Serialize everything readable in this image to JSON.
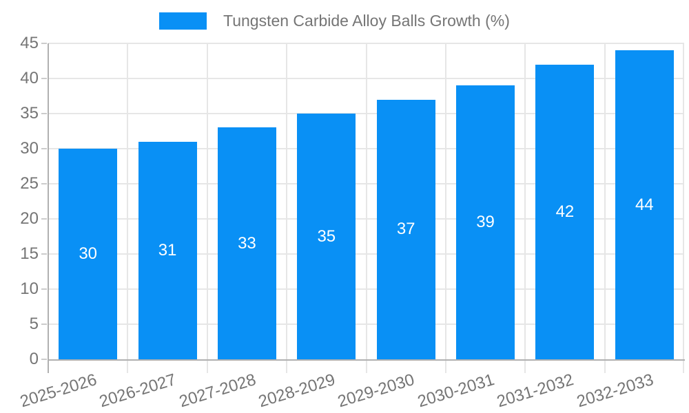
{
  "legend": {
    "label": "Tungsten Carbide Alloy Balls Growth (%)"
  },
  "chart_data": {
    "type": "bar",
    "title": "Tungsten Carbide Alloy Balls Growth (%)",
    "categories": [
      "2025-2026",
      "2026-2027",
      "2027-2028",
      "2028-2029",
      "2029-2030",
      "2030-2031",
      "2031-2032",
      "2032-2033"
    ],
    "values": [
      30,
      31,
      33,
      35,
      37,
      39,
      42,
      44
    ],
    "series": [
      {
        "name": "Tungsten Carbide Alloy Balls Growth (%)",
        "values": [
          30,
          31,
          33,
          35,
          37,
          39,
          42,
          44
        ]
      }
    ],
    "xlabel": "",
    "ylabel": "",
    "ylim": [
      0,
      45
    ],
    "ytick_step": 5,
    "yticks": [
      0,
      5,
      10,
      15,
      20,
      25,
      30,
      35,
      40,
      45
    ],
    "grid": true,
    "legend_position": "top",
    "data_labels": "inside-center-white",
    "colors": {
      "bar": "#0990f5",
      "bar_label": "#ffffff",
      "grid": "#e6e6e6",
      "axis": "#b0b0b0",
      "minor_tick": "#cccccc",
      "tick_text": "#757575",
      "legend_text": "#757575",
      "background": "#ffffff"
    }
  }
}
